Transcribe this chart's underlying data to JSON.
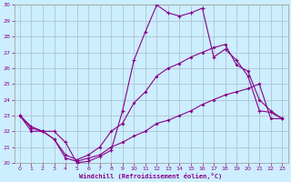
{
  "xlabel": "Windchill (Refroidissement éolien,°C)",
  "bg_color": "#cceeff",
  "grid_color": "#aabbcc",
  "line_color": "#880088",
  "xlim": [
    -0.5,
    23.5
  ],
  "ylim": [
    20,
    30
  ],
  "xticks": [
    0,
    1,
    2,
    3,
    4,
    5,
    6,
    7,
    8,
    9,
    10,
    11,
    12,
    13,
    14,
    15,
    16,
    17,
    18,
    19,
    20,
    21,
    22,
    23
  ],
  "yticks": [
    20,
    21,
    22,
    23,
    24,
    25,
    26,
    27,
    28,
    29,
    30
  ],
  "line1_x": [
    0,
    1,
    2,
    3,
    4,
    5,
    6,
    7,
    8,
    9,
    10,
    11,
    12,
    13,
    14,
    15,
    16,
    17,
    18,
    19,
    20,
    21,
    22,
    23
  ],
  "line1_y": [
    23.0,
    22.3,
    22.0,
    22.0,
    21.3,
    20.0,
    20.1,
    20.4,
    20.8,
    23.3,
    26.5,
    28.3,
    30.0,
    29.5,
    29.3,
    29.5,
    29.8,
    26.7,
    27.2,
    26.5,
    25.5,
    23.3,
    23.2,
    22.8
  ],
  "line2_x": [
    0,
    1,
    2,
    3,
    4,
    5,
    6,
    7,
    8,
    9,
    10,
    11,
    12,
    13,
    14,
    15,
    16,
    17,
    18,
    19,
    20,
    21,
    22,
    23
  ],
  "line2_y": [
    23.0,
    22.2,
    22.0,
    21.5,
    20.5,
    20.2,
    20.5,
    21.0,
    22.0,
    22.5,
    23.8,
    24.5,
    25.5,
    26.0,
    26.3,
    26.7,
    27.0,
    27.3,
    27.5,
    26.2,
    25.8,
    24.0,
    23.3,
    22.8
  ],
  "line3_x": [
    0,
    1,
    2,
    3,
    4,
    5,
    6,
    7,
    8,
    9,
    10,
    11,
    12,
    13,
    14,
    15,
    16,
    17,
    18,
    19,
    20,
    21,
    22,
    23
  ],
  "line3_y": [
    23.0,
    22.0,
    22.0,
    21.5,
    20.3,
    20.1,
    20.3,
    20.5,
    21.0,
    21.3,
    21.7,
    22.0,
    22.5,
    22.7,
    23.0,
    23.3,
    23.7,
    24.0,
    24.3,
    24.5,
    24.7,
    25.0,
    22.8,
    22.8
  ]
}
